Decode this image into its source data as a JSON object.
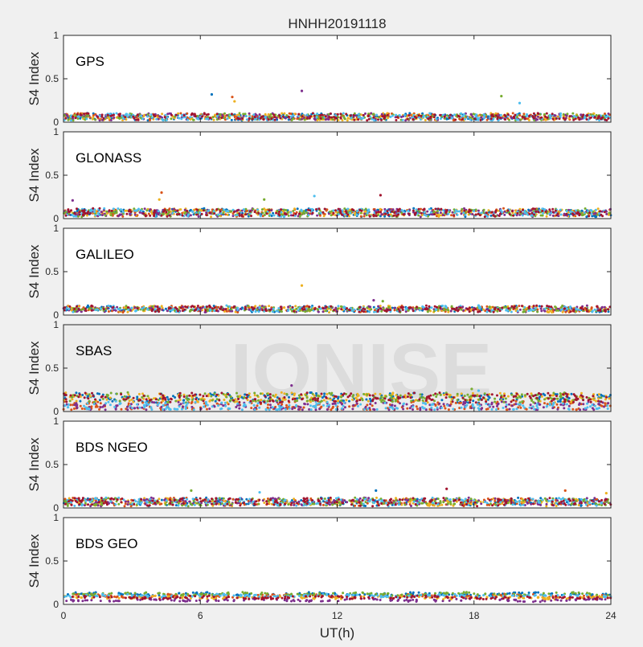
{
  "figure": {
    "title": "HNHH20191118",
    "xlabel": "UT(h)",
    "ylabel": "S4 Index",
    "watermark": "IONISE",
    "background": "#f0f0f0",
    "plot_background": "#ffffff"
  },
  "series_colors": [
    "#0072bd",
    "#d95319",
    "#edb120",
    "#7e2f8e",
    "#77ac30",
    "#4dbeee",
    "#a2142f"
  ],
  "chart_data": [
    {
      "type": "scatter",
      "panel_label": "GPS",
      "xlim": [
        0,
        24
      ],
      "ylim": [
        0,
        1
      ],
      "xticks": [
        0,
        6,
        12,
        18,
        24
      ],
      "yticks": [
        0,
        0.5,
        1
      ],
      "ytick_labels": [
        "0",
        "0.5",
        "1"
      ],
      "grid": false,
      "baseline": 0.06,
      "noise": 0.035,
      "n_points": 190,
      "notable_points": [
        {
          "x": 6.5,
          "y": 0.32
        },
        {
          "x": 7.4,
          "y": 0.29
        },
        {
          "x": 7.5,
          "y": 0.24
        },
        {
          "x": 10.45,
          "y": 0.36
        },
        {
          "x": 19.2,
          "y": 0.3
        },
        {
          "x": 20.0,
          "y": 0.22
        }
      ]
    },
    {
      "type": "scatter",
      "panel_label": "GLONASS",
      "xlim": [
        0,
        24
      ],
      "ylim": [
        0,
        1
      ],
      "xticks": [
        0,
        6,
        12,
        18,
        24
      ],
      "yticks": [
        0,
        0.5,
        1
      ],
      "ytick_labels": [
        "0",
        "0.5",
        "1"
      ],
      "grid": false,
      "baseline": 0.07,
      "noise": 0.04,
      "n_points": 190,
      "notable_points": [
        {
          "x": 4.3,
          "y": 0.3
        },
        {
          "x": 4.2,
          "y": 0.22
        },
        {
          "x": 0.4,
          "y": 0.21
        },
        {
          "x": 8.8,
          "y": 0.22
        },
        {
          "x": 11.0,
          "y": 0.26
        },
        {
          "x": 13.9,
          "y": 0.27
        }
      ]
    },
    {
      "type": "scatter",
      "panel_label": "GALILEO",
      "xlim": [
        0,
        24
      ],
      "ylim": [
        0,
        1
      ],
      "xticks": [
        0,
        6,
        12,
        18,
        24
      ],
      "yticks": [
        0,
        0.5,
        1
      ],
      "ytick_labels": [
        "0",
        "0.5",
        "1"
      ],
      "grid": false,
      "baseline": 0.07,
      "noise": 0.03,
      "n_points": 170,
      "notable_points": [
        {
          "x": 10.45,
          "y": 0.34
        },
        {
          "x": 13.6,
          "y": 0.17
        },
        {
          "x": 14.0,
          "y": 0.16
        },
        {
          "x": 18.2,
          "y": 0.11
        },
        {
          "x": 23.4,
          "y": 0.1
        }
      ]
    },
    {
      "type": "scatter",
      "panel_label": "SBAS",
      "xlim": [
        0,
        24
      ],
      "ylim": [
        0,
        1
      ],
      "xticks": [
        0,
        6,
        12,
        18,
        24
      ],
      "yticks": [
        0,
        0.5,
        1
      ],
      "ytick_labels": [
        "0",
        "0.5",
        "1"
      ],
      "grid": false,
      "baseline": 0.1,
      "noise": 0.05,
      "n_points": 200,
      "bands": [
        0.16,
        0.06
      ],
      "notable_points": [
        {
          "x": 10.0,
          "y": 0.3
        },
        {
          "x": 17.9,
          "y": 0.26
        },
        {
          "x": 18.2,
          "y": 0.24
        }
      ]
    },
    {
      "type": "scatter",
      "panel_label": "BDS NGEO",
      "xlim": [
        0,
        24
      ],
      "ylim": [
        0,
        1
      ],
      "xticks": [
        0,
        6,
        12,
        18,
        24
      ],
      "yticks": [
        0,
        0.5,
        1
      ],
      "ytick_labels": [
        "0",
        "0.5",
        "1"
      ],
      "grid": false,
      "baseline": 0.07,
      "noise": 0.04,
      "n_points": 190,
      "notable_points": [
        {
          "x": 5.6,
          "y": 0.2
        },
        {
          "x": 8.6,
          "y": 0.18
        },
        {
          "x": 16.8,
          "y": 0.22
        },
        {
          "x": 13.7,
          "y": 0.2
        },
        {
          "x": 22.0,
          "y": 0.2
        },
        {
          "x": 23.8,
          "y": 0.17
        }
      ]
    },
    {
      "type": "scatter",
      "panel_label": "BDS GEO",
      "xlim": [
        0,
        24
      ],
      "ylim": [
        0,
        1
      ],
      "xticks": [
        0,
        6,
        12,
        18,
        24
      ],
      "yticks": [
        0,
        0.5,
        1
      ],
      "ytick_labels": [
        "0",
        "0.5",
        "1"
      ],
      "grid": false,
      "baseline": 0.09,
      "noise": 0.012,
      "n_points": 160,
      "bands": [
        0.12,
        0.1,
        0.08,
        0.05
      ],
      "notable_points": []
    }
  ]
}
